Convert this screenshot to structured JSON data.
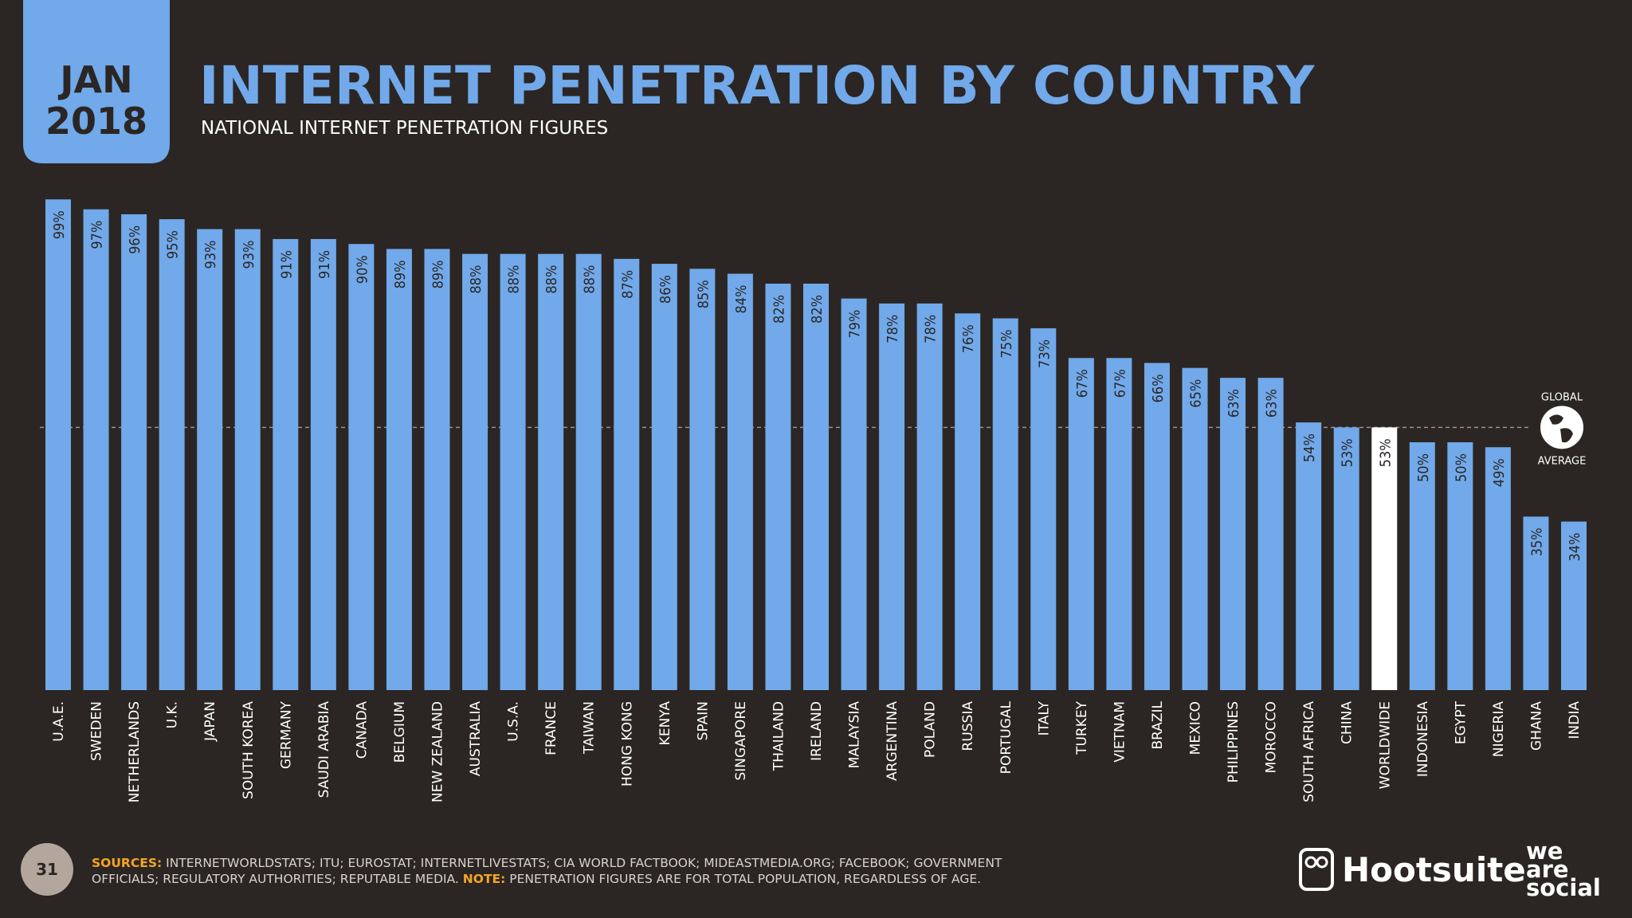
{
  "header": {
    "month": "JAN",
    "year": "2018",
    "title": "INTERNET PENETRATION BY COUNTRY",
    "subtitle": "NATIONAL INTERNET PENETRATION FIGURES"
  },
  "chart_data": {
    "type": "bar",
    "categories": [
      "U.A.E.",
      "SWEDEN",
      "NETHERLANDS",
      "U.K.",
      "JAPAN",
      "SOUTH KOREA",
      "GERMANY",
      "SAUDI ARABIA",
      "CANADA",
      "BELGIUM",
      "NEW ZEALAND",
      "AUSTRALIA",
      "U.S.A.",
      "FRANCE",
      "TAIWAN",
      "HONG KONG",
      "KENYA",
      "SPAIN",
      "SINGAPORE",
      "THAILAND",
      "IRELAND",
      "MALAYSIA",
      "ARGENTINA",
      "POLAND",
      "RUSSIA",
      "PORTUGAL",
      "ITALY",
      "TURKEY",
      "VIETNAM",
      "BRAZIL",
      "MEXICO",
      "PHILIPPINES",
      "MOROCCO",
      "SOUTH AFRICA",
      "CHINA",
      "WORLDWIDE",
      "INDONESIA",
      "EGYPT",
      "NIGERIA",
      "GHANA",
      "INDIA"
    ],
    "values": [
      99,
      97,
      96,
      95,
      93,
      93,
      91,
      91,
      90,
      89,
      89,
      88,
      88,
      88,
      88,
      87,
      86,
      85,
      84,
      82,
      82,
      79,
      78,
      78,
      76,
      75,
      73,
      67,
      67,
      66,
      65,
      63,
      63,
      54,
      53,
      53,
      50,
      50,
      49,
      35,
      34
    ],
    "value_labels": [
      "99%",
      "97%",
      "96%",
      "95%",
      "93%",
      "93%",
      "91%",
      "91%",
      "90%",
      "89%",
      "89%",
      "88%",
      "88%",
      "88%",
      "88%",
      "87%",
      "86%",
      "85%",
      "84%",
      "82%",
      "82%",
      "79%",
      "78%",
      "78%",
      "76%",
      "75%",
      "73%",
      "67%",
      "67%",
      "66%",
      "65%",
      "63%",
      "63%",
      "54%",
      "53%",
      "53%",
      "50%",
      "50%",
      "49%",
      "35%",
      "34%"
    ],
    "color": "#71a9ea",
    "highlight": {
      "category": "WORLDWIDE",
      "color": "#ffffff"
    },
    "ylim": [
      0,
      100
    ],
    "average_line": {
      "value": 53,
      "label_top": "GLOBAL",
      "label_bottom": "AVERAGE"
    }
  },
  "footer": {
    "page": "31",
    "sources_label": "SOURCES:",
    "sources_1": "INTERNETWORLDSTATS; ITU; EUROSTAT; INTERNETLIVESTATS; CIA WORLD FACTBOOK; MIDEASTMEDIA.ORG; FACEBOOK; GOVERNMENT",
    "sources_2": "OFFICIALS; REGULATORY AUTHORITIES; REPUTABLE MEDIA.",
    "note_label": "NOTE:",
    "note": "PENETRATION FIGURES ARE FOR TOTAL POPULATION, REGARDLESS OF AGE.",
    "brand_1": "Hootsuite",
    "brand_2": [
      "we",
      "are",
      "social"
    ]
  }
}
